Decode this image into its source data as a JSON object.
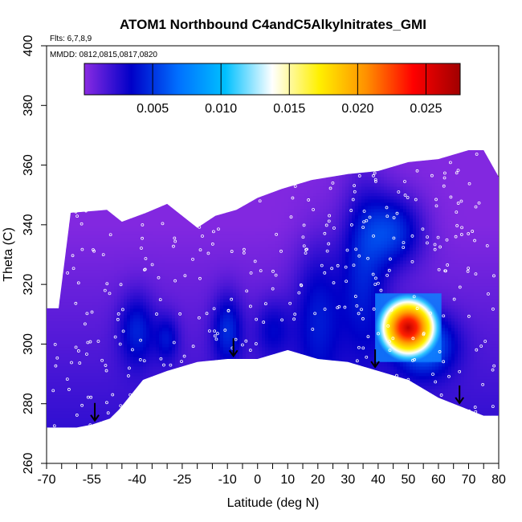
{
  "chart_data": {
    "type": "heatmap",
    "title": "ATOM1 Northbound C4andC5Alkylnitrates_GMI",
    "flights_label": "Flts: 6,7,8,9",
    "dates_label": "MMDD: 0812,0815,0817,0820",
    "xlabel": "Latitude (deg N)",
    "ylabel": "Theta (C)",
    "xlim": [
      -70,
      80
    ],
    "ylim": [
      260,
      400
    ],
    "x_ticks": [
      "-70",
      "-55",
      "-40",
      "-25",
      "-10",
      "0",
      "10",
      "20",
      "30",
      "40",
      "50",
      "60",
      "70",
      "80"
    ],
    "x_tick_values": [
      -70,
      -55,
      -40,
      -25,
      -10,
      0,
      10,
      20,
      30,
      40,
      50,
      60,
      70,
      80
    ],
    "x_minor_ticks": [
      -65,
      -60,
      -50,
      -45,
      -35,
      -30,
      -20,
      -15,
      -5,
      5,
      15,
      25,
      35,
      45,
      55,
      65,
      75
    ],
    "y_ticks": [
      "260",
      "280",
      "300",
      "320",
      "340",
      "360",
      "380",
      "400"
    ],
    "y_tick_values": [
      260,
      280,
      300,
      320,
      340,
      360,
      380,
      400
    ],
    "colorbar": {
      "range": [
        0,
        0.0275
      ],
      "ticks": [
        "0.005",
        "0.010",
        "0.015",
        "0.020",
        "0.025"
      ],
      "tick_values": [
        0.005,
        0.01,
        0.015,
        0.02,
        0.025
      ],
      "colors": [
        "#8a2be2",
        "#0000c8",
        "#0070ff",
        "#00c0ff",
        "#ffffff",
        "#fff000",
        "#ff9000",
        "#ff0000",
        "#a00000"
      ]
    },
    "domain_top": [
      [
        -70,
        312
      ],
      [
        -66,
        312
      ],
      [
        -62,
        344
      ],
      [
        -50,
        345
      ],
      [
        -45,
        341
      ],
      [
        -37,
        344
      ],
      [
        -30,
        347
      ],
      [
        -20,
        339
      ],
      [
        -14,
        343
      ],
      [
        -7,
        345
      ],
      [
        0,
        349
      ],
      [
        8,
        352
      ],
      [
        18,
        355
      ],
      [
        30,
        357
      ],
      [
        40,
        358
      ],
      [
        50,
        361
      ],
      [
        60,
        362
      ],
      [
        70,
        365
      ],
      [
        75,
        365
      ],
      [
        80,
        356
      ]
    ],
    "domain_bottom": [
      [
        -70,
        272
      ],
      [
        -60,
        272
      ],
      [
        -55,
        273
      ],
      [
        -49,
        275
      ],
      [
        -46,
        278
      ],
      [
        -38,
        288
      ],
      [
        -30,
        291
      ],
      [
        -20,
        294
      ],
      [
        -10,
        295
      ],
      [
        0,
        295
      ],
      [
        10,
        298
      ],
      [
        20,
        295
      ],
      [
        30,
        294
      ],
      [
        40,
        291
      ],
      [
        50,
        288
      ],
      [
        60,
        282
      ],
      [
        70,
        278
      ],
      [
        75,
        276
      ],
      [
        80,
        276
      ]
    ],
    "hotspot": {
      "lat": 50,
      "theta": 303,
      "value": 0.0265
    },
    "arrows_latitude": [
      -54,
      -8,
      39,
      67
    ]
  }
}
